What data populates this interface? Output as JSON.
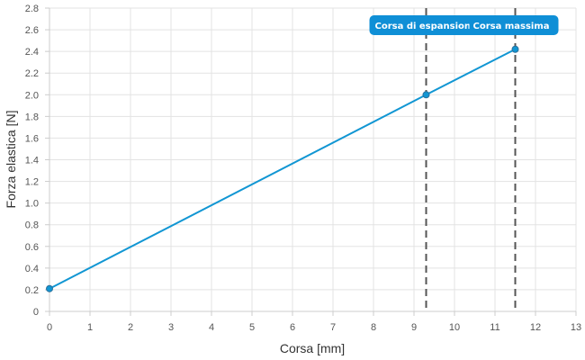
{
  "chart_data": {
    "type": "line",
    "title": "",
    "xlabel": "Corsa [mm]",
    "ylabel": "Forza elastica [N]",
    "xlim": [
      0,
      13
    ],
    "ylim": [
      0,
      2.8
    ],
    "x_ticks": [
      "0",
      "1",
      "2",
      "3",
      "4",
      "5",
      "6",
      "7",
      "8",
      "9",
      "10",
      "11",
      "12",
      "13"
    ],
    "y_ticks": [
      "0",
      "0.2",
      "0.4",
      "0.6",
      "0.8",
      "1.0",
      "1.2",
      "1.4",
      "1.6",
      "1.8",
      "2.0",
      "2.2",
      "2.4",
      "2.6",
      "2.8"
    ],
    "grid": true,
    "series": [
      {
        "color": "#1196d3",
        "points": [
          {
            "x": 0,
            "y": 0.21
          },
          {
            "x": 9.3,
            "y": 2.0
          },
          {
            "x": 11.5,
            "y": 2.42
          }
        ]
      }
    ],
    "annotations": [
      {
        "label": "Corsa di espansion",
        "x": 9.3,
        "type": "vertical-dashed-line"
      },
      {
        "label": "Corsa massima",
        "x": 11.5,
        "type": "vertical-dashed-line"
      }
    ],
    "colors": {
      "line": "#1196d3",
      "annotation_box": "#0f8fd6",
      "annotation_line": "#555555",
      "grid": "#e3e3e3"
    }
  }
}
